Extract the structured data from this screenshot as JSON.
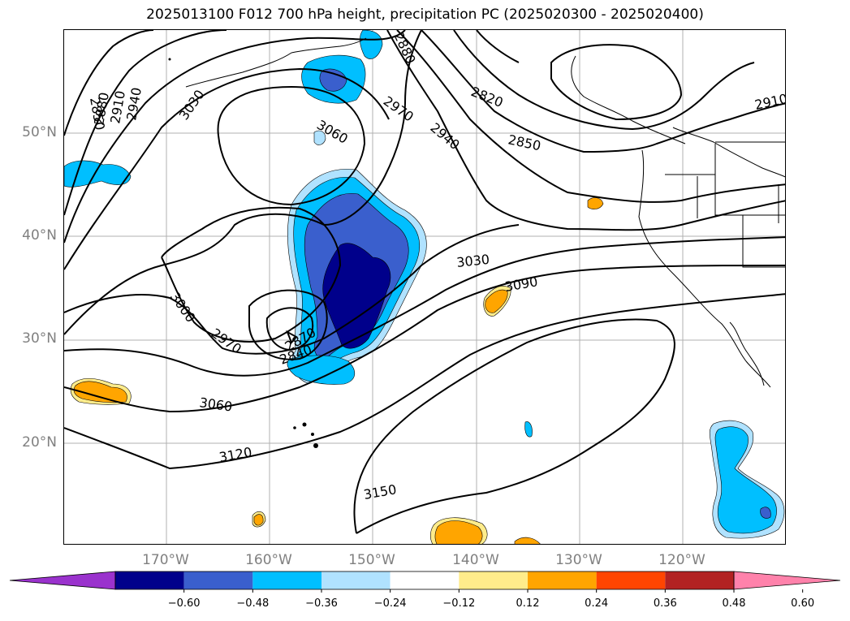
{
  "title": "2025013100 F012 700 hPa height, precipitation PC (2025020300 - 2025020400)",
  "axes": {
    "lat_labels": [
      "50°N",
      "40°N",
      "30°N",
      "20°N"
    ],
    "lon_labels": [
      "170°W",
      "160°W",
      "150°W",
      "140°W",
      "130°W",
      "120°W"
    ]
  },
  "colorbar": {
    "ticks": [
      "−0.60",
      "−0.48",
      "−0.36",
      "−0.24",
      "−0.12",
      "0.12",
      "0.24",
      "0.36",
      "0.48",
      "0.60"
    ],
    "colors": [
      "#9a32cd",
      "#00008b",
      "#3a5fcd",
      "#00bfff",
      "#b0e2ff",
      "#ffffff",
      "#ffec8b",
      "#ffa500",
      "#ff4500",
      "#b22222",
      "#ff82ab"
    ]
  },
  "contour_labels": [
    "2850",
    "2880",
    "2910",
    "2940",
    "3030",
    "3060",
    "2970",
    "2940",
    "2820",
    "2850",
    "2910",
    "3030",
    "3090",
    "3000",
    "2970",
    "2840",
    "2870",
    "3060",
    "3120",
    "3150",
    "2880"
  ]
}
